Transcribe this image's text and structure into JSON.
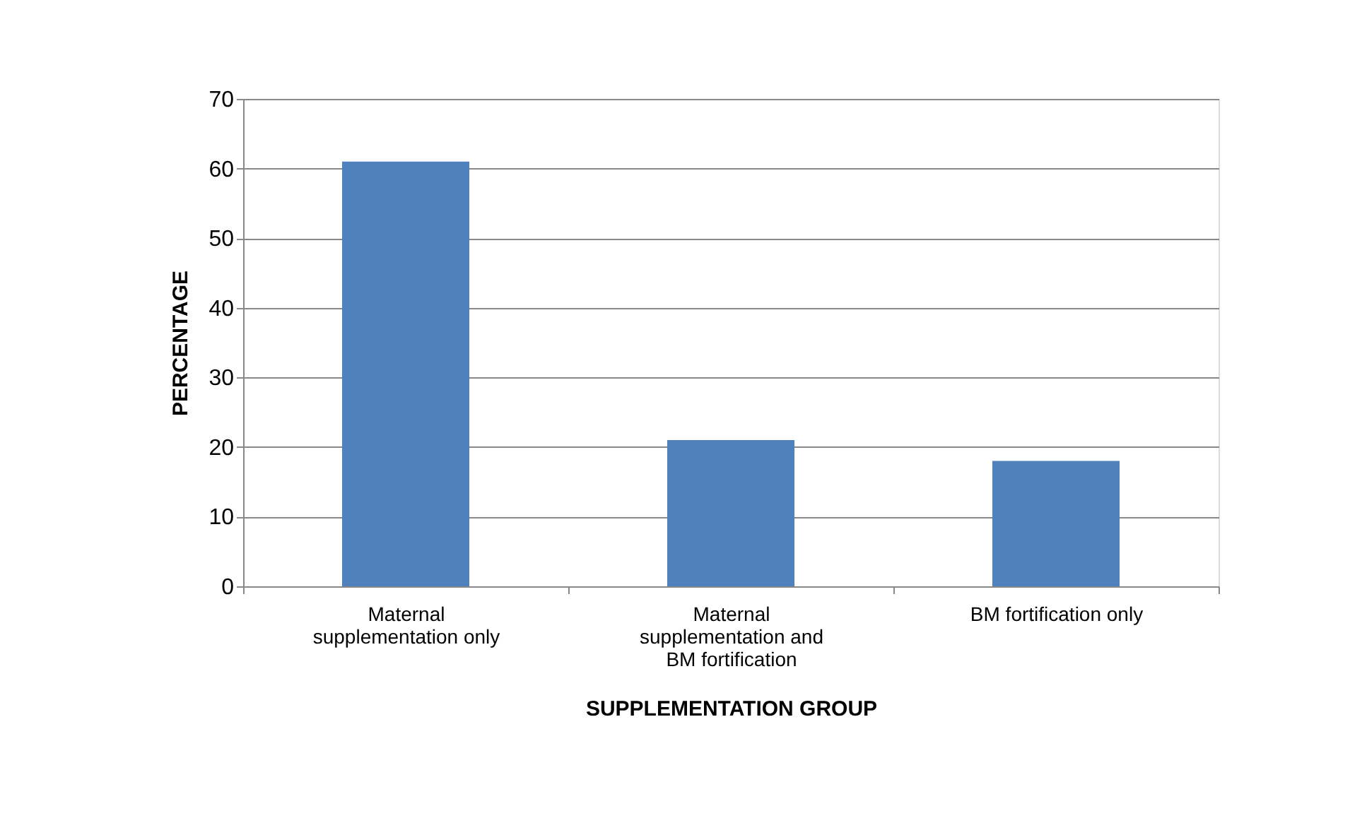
{
  "chart_data": {
    "type": "bar",
    "xlabel": "SUPPLEMENTATION GROUP",
    "ylabel": "PERCENTAGE",
    "categories": [
      "Maternal supplementation only",
      "Maternal supplementation and BM fortification",
      "BM fortification only"
    ],
    "values": [
      61,
      21,
      18
    ],
    "color": "#4f81bd",
    "ylim": [
      0,
      70
    ],
    "yticks": [
      0,
      10,
      20,
      30,
      40,
      50,
      60,
      70
    ],
    "grid": "y"
  }
}
